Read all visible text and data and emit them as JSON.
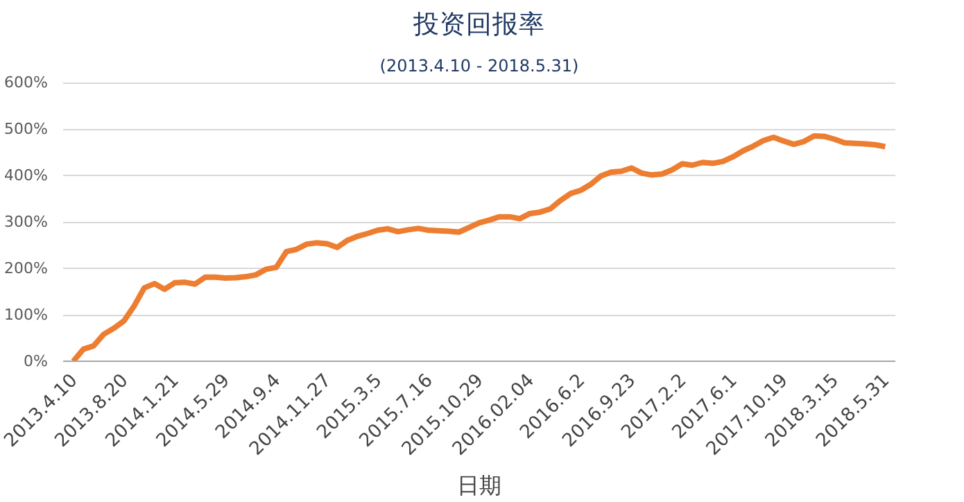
{
  "chart_data": {
    "type": "line",
    "title": "投资回报率",
    "subtitle": "(2013.4.10 - 2018.5.31)",
    "xlabel": "日期",
    "categories": [
      "2013.4.10",
      null,
      null,
      null,
      null,
      "2013.8.20",
      null,
      null,
      null,
      null,
      "2014.1.21",
      null,
      null,
      null,
      null,
      "2014.5.29",
      null,
      null,
      null,
      null,
      "2014.9.4",
      null,
      null,
      null,
      null,
      "2014.11.27",
      null,
      null,
      null,
      null,
      "2015.3.5",
      null,
      null,
      null,
      null,
      "2015.7.16",
      null,
      null,
      null,
      null,
      "2015.10.29",
      null,
      null,
      null,
      null,
      "2016.02.04",
      null,
      null,
      null,
      null,
      "2016.6.2",
      null,
      null,
      null,
      null,
      "2016.9.23",
      null,
      null,
      null,
      null,
      "2017.2.2",
      null,
      null,
      null,
      null,
      "2017.6.1",
      null,
      null,
      null,
      null,
      "2017.10.19",
      null,
      null,
      null,
      null,
      "2018.3.15",
      null,
      null,
      null,
      null,
      "2018.5.31"
    ],
    "series": [
      {
        "color": "#ed7d31",
        "values": [
          0,
          26,
          33,
          58,
          71,
          87,
          119,
          158,
          167,
          155,
          169,
          170,
          166,
          181,
          181,
          179,
          180,
          182,
          186,
          198,
          202,
          236,
          241,
          252,
          255,
          253,
          245,
          260,
          269,
          275,
          282,
          285,
          279,
          283,
          286,
          282,
          281,
          280,
          278,
          288,
          298,
          304,
          311,
          311,
          307,
          318,
          321,
          328,
          346,
          361,
          368,
          381,
          399,
          407,
          409,
          416,
          405,
          401,
          403,
          412,
          425,
          422,
          428,
          426,
          430,
          440,
          453,
          463,
          475,
          482,
          474,
          467,
          473,
          485,
          484,
          478,
          470,
          469,
          468,
          466,
          462
        ]
      }
    ],
    "ylim": [
      0,
      600
    ],
    "yticks": [
      {
        "value": 0,
        "label": "0%"
      },
      {
        "value": 100,
        "label": "100%"
      },
      {
        "value": 200,
        "label": "200%"
      },
      {
        "value": 300,
        "label": "300%"
      },
      {
        "value": 400,
        "label": "400%"
      },
      {
        "value": 500,
        "label": "500%"
      },
      {
        "value": 600,
        "label": "600%"
      }
    ],
    "grid": "y",
    "marker": "none",
    "line_style": "solid"
  }
}
